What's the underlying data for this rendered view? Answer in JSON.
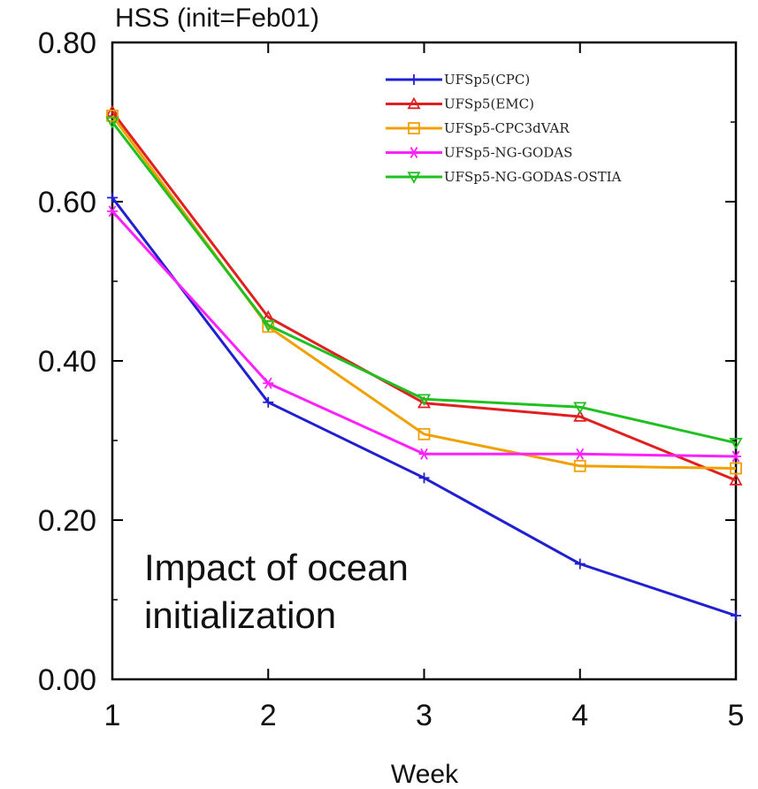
{
  "chart_data": {
    "type": "line",
    "title": "HSS (init=Feb01)",
    "xlabel": "Week",
    "ylabel": "",
    "x": [
      1,
      2,
      3,
      4,
      5
    ],
    "x_tick_labels": [
      "1",
      "2",
      "3",
      "4",
      "5"
    ],
    "xlim": [
      1,
      5
    ],
    "ylim": [
      0,
      0.8
    ],
    "y_ticks": [
      0,
      0.2,
      0.4,
      0.6,
      0.8
    ],
    "y_tick_labels": [
      "0.00",
      "0.20",
      "0.40",
      "0.60",
      "0.80"
    ],
    "grid": false,
    "legend_position": "top-right",
    "annotation": [
      "Impact of ocean",
      "initialization"
    ],
    "series": [
      {
        "name": "UFSp5(CPC)",
        "color": "#2020d0",
        "marker": "plus",
        "values": [
          0.605,
          0.348,
          0.253,
          0.145,
          0.08
        ]
      },
      {
        "name": "UFSp5(EMC)",
        "color": "#e02020",
        "marker": "triangle",
        "values": [
          0.713,
          0.455,
          0.347,
          0.33,
          0.25
        ]
      },
      {
        "name": "UFSp5-CPC3dVAR",
        "color": "#f0a000",
        "marker": "square",
        "values": [
          0.708,
          0.443,
          0.308,
          0.268,
          0.265
        ]
      },
      {
        "name": "UFSp5-NG-GODAS",
        "color": "#ff20ff",
        "marker": "asterisk",
        "values": [
          0.588,
          0.372,
          0.283,
          0.283,
          0.28
        ]
      },
      {
        "name": "UFSp5-NG-GODAS-OSTIA",
        "color": "#20c020",
        "marker": "triangle-down",
        "values": [
          0.7,
          0.445,
          0.352,
          0.342,
          0.297
        ]
      }
    ]
  }
}
